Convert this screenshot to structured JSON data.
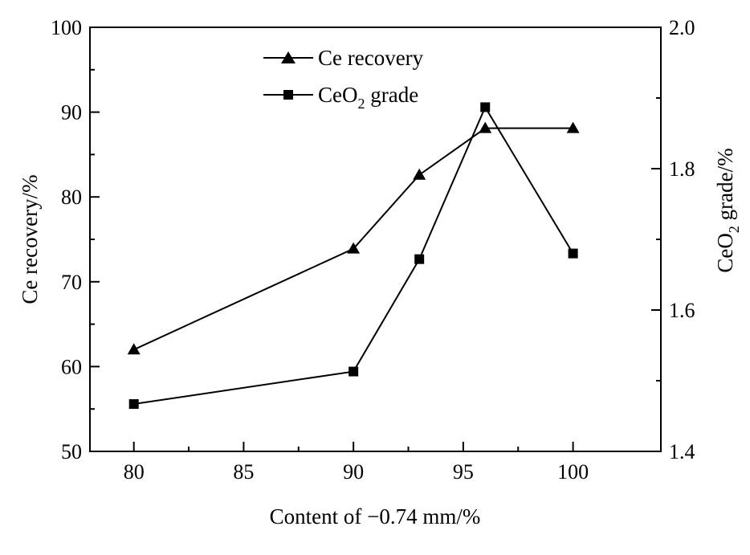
{
  "chart_data": {
    "type": "line",
    "xlabel": "Content of −0.74 mm/%",
    "ylabel_left": "Ce recovery/%",
    "ylabel_right_parts": [
      "CeO",
      "2",
      " grade/%"
    ],
    "xlim": [
      78,
      104
    ],
    "xticks": [
      80,
      85,
      90,
      95,
      100
    ],
    "ylim_left": [
      50,
      100
    ],
    "yticks_left": [
      50,
      60,
      70,
      80,
      90,
      100
    ],
    "ylim_right": [
      1.4,
      2.0
    ],
    "yticks_right": [
      "1.4",
      "1.6",
      "1.8",
      "2.0"
    ],
    "grid": false,
    "legend_position": "top-center",
    "series": [
      {
        "name": "Ce recovery",
        "marker": "triangle",
        "axis": "left",
        "x": [
          80,
          90,
          93,
          96,
          100
        ],
        "y": [
          62.0,
          73.9,
          82.6,
          88.1,
          88.1
        ]
      },
      {
        "name_parts": [
          "CeO",
          "2",
          " grade"
        ],
        "marker": "square",
        "axis": "right",
        "x": [
          80,
          90,
          93,
          96,
          100
        ],
        "y": [
          1.467,
          1.513,
          1.672,
          1.887,
          1.68
        ]
      }
    ]
  }
}
